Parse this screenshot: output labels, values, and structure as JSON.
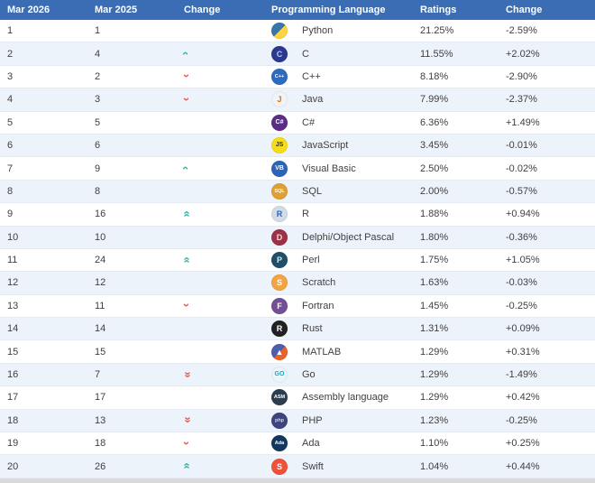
{
  "colors": {
    "header_bg": "#3b6db5",
    "header_fg": "#ffffff",
    "stripe": "#edf3fb",
    "row_bg": "#ffffff",
    "border": "#e4ebf3",
    "text": "#404040",
    "arrow_up": "#33b2a6",
    "arrow_down": "#e2574c",
    "page_bg": "#d9d9d9"
  },
  "chart_data": {
    "type": "table",
    "title": "TIOBE programming language ranking table",
    "columns": [
      "Mar 2026",
      "Mar 2025",
      "Change",
      "Programming Language",
      "Ratings",
      "Change"
    ],
    "rows": [
      {
        "rank": "1",
        "prev": "1",
        "move": "same",
        "language": "Python",
        "rating": "21.25%",
        "change": "-2.59%",
        "icon": {
          "name": "python-icon",
          "glyph": "",
          "bg": "#3776ab",
          "bg2": "#ffd343",
          "fg": "#ffffff"
        }
      },
      {
        "rank": "2",
        "prev": "4",
        "move": "up",
        "language": "C",
        "rating": "11.55%",
        "change": "+2.02%",
        "icon": {
          "name": "c-icon",
          "glyph": "C",
          "bg": "#2b3990",
          "fg": "#bcc6ef"
        }
      },
      {
        "rank": "3",
        "prev": "2",
        "move": "down",
        "language": "C++",
        "rating": "8.18%",
        "change": "-2.90%",
        "icon": {
          "name": "cpp-icon",
          "glyph": "C++",
          "bg": "#2e6bc0",
          "fg": "#ffffff"
        }
      },
      {
        "rank": "4",
        "prev": "3",
        "move": "down",
        "language": "Java",
        "rating": "7.99%",
        "change": "-2.37%",
        "icon": {
          "name": "java-icon",
          "glyph": "J",
          "bg": "#f0f3f8",
          "fg": "#e76f00"
        }
      },
      {
        "rank": "5",
        "prev": "5",
        "move": "same",
        "language": "C#",
        "rating": "6.36%",
        "change": "+1.49%",
        "icon": {
          "name": "csharp-icon",
          "glyph": "C#",
          "bg": "#5b2d87",
          "fg": "#ffffff"
        }
      },
      {
        "rank": "6",
        "prev": "6",
        "move": "same",
        "language": "JavaScript",
        "rating": "3.45%",
        "change": "-0.01%",
        "icon": {
          "name": "javascript-icon",
          "glyph": "JS",
          "bg": "#f5de19",
          "fg": "#2b2b2b"
        }
      },
      {
        "rank": "7",
        "prev": "9",
        "move": "up",
        "language": "Visual Basic",
        "rating": "2.50%",
        "change": "-0.02%",
        "icon": {
          "name": "visual-basic-icon",
          "glyph": "VB",
          "bg": "#2d64b5",
          "fg": "#ffffff"
        }
      },
      {
        "rank": "8",
        "prev": "8",
        "move": "same",
        "language": "SQL",
        "rating": "2.00%",
        "change": "-0.57%",
        "icon": {
          "name": "sql-icon",
          "glyph": "SQL",
          "bg": "#dfa035",
          "fg": "#ffffff"
        }
      },
      {
        "rank": "9",
        "prev": "16",
        "move": "up2",
        "language": "R",
        "rating": "1.88%",
        "change": "+0.94%",
        "icon": {
          "name": "r-icon",
          "glyph": "R",
          "bg": "#d3dbe6",
          "fg": "#2367be"
        }
      },
      {
        "rank": "10",
        "prev": "10",
        "move": "same",
        "language": "Delphi/Object Pascal",
        "rating": "1.80%",
        "change": "-0.36%",
        "icon": {
          "name": "delphi-icon",
          "glyph": "D",
          "bg": "#9c3148",
          "fg": "#f5dada"
        }
      },
      {
        "rank": "11",
        "prev": "24",
        "move": "up2",
        "language": "Perl",
        "rating": "1.75%",
        "change": "+1.05%",
        "icon": {
          "name": "perl-icon",
          "glyph": "P",
          "bg": "#234e68",
          "fg": "#cdeef7"
        }
      },
      {
        "rank": "12",
        "prev": "12",
        "move": "same",
        "language": "Scratch",
        "rating": "1.63%",
        "change": "-0.03%",
        "icon": {
          "name": "scratch-icon",
          "glyph": "S",
          "bg": "#f2a444",
          "fg": "#ffffff"
        }
      },
      {
        "rank": "13",
        "prev": "11",
        "move": "down",
        "language": "Fortran",
        "rating": "1.45%",
        "change": "-0.25%",
        "icon": {
          "name": "fortran-icon",
          "glyph": "F",
          "bg": "#734f96",
          "fg": "#ffffff"
        }
      },
      {
        "rank": "14",
        "prev": "14",
        "move": "same",
        "language": "Rust",
        "rating": "1.31%",
        "change": "+0.09%",
        "icon": {
          "name": "rust-icon",
          "glyph": "R",
          "bg": "#212121",
          "fg": "#ffffff"
        }
      },
      {
        "rank": "15",
        "prev": "15",
        "move": "same",
        "language": "MATLAB",
        "rating": "1.29%",
        "change": "+0.31%",
        "icon": {
          "name": "matlab-icon",
          "glyph": "▲",
          "bg": "#4a5fad",
          "bg2": "#e8622d",
          "fg": "#ffffff"
        }
      },
      {
        "rank": "16",
        "prev": "7",
        "move": "down2",
        "language": "Go",
        "rating": "1.29%",
        "change": "-1.49%",
        "icon": {
          "name": "go-icon",
          "glyph": "GO",
          "bg": "#e8f6fa",
          "fg": "#00acd7"
        }
      },
      {
        "rank": "17",
        "prev": "17",
        "move": "same",
        "language": "Assembly language",
        "rating": "1.29%",
        "change": "+0.42%",
        "icon": {
          "name": "assembly-icon",
          "glyph": "ASM",
          "bg": "#2c3e50",
          "fg": "#ffffff"
        }
      },
      {
        "rank": "18",
        "prev": "13",
        "move": "down2",
        "language": "PHP",
        "rating": "1.23%",
        "change": "-0.25%",
        "icon": {
          "name": "php-icon",
          "glyph": "php",
          "bg": "#3d447e",
          "fg": "#cdd3f0"
        }
      },
      {
        "rank": "19",
        "prev": "18",
        "move": "down",
        "language": "Ada",
        "rating": "1.10%",
        "change": "+0.25%",
        "icon": {
          "name": "ada-icon",
          "glyph": "Ada",
          "bg": "#14375e",
          "fg": "#ffffff"
        }
      },
      {
        "rank": "20",
        "prev": "26",
        "move": "up2",
        "language": "Swift",
        "rating": "1.04%",
        "change": "+0.44%",
        "icon": {
          "name": "swift-icon",
          "glyph": "S",
          "bg": "#ef5239",
          "fg": "#ffffff"
        }
      }
    ]
  }
}
